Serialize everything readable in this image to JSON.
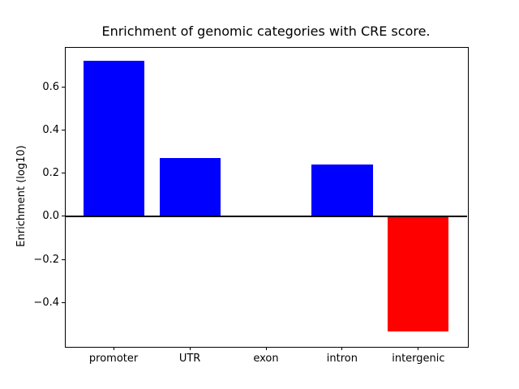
{
  "chart_data": {
    "type": "bar",
    "title": "Enrichment of genomic categories with CRE score.",
    "xlabel": "",
    "ylabel": "Enrichment (log10)",
    "categories": [
      "promoter",
      "UTR",
      "exon",
      "intron",
      "intergenic"
    ],
    "values": [
      0.72,
      0.27,
      0.0,
      0.24,
      -0.535
    ],
    "bar_colors": [
      "#0000ff",
      "#0000ff",
      "#0000ff",
      "#0000ff",
      "#ff0000"
    ],
    "positive_color": "#0000ff",
    "negative_color": "#ff0000",
    "bar_width": 0.8,
    "xlim": [
      -0.64,
      4.64
    ],
    "ylim": [
      -0.602,
      0.784
    ],
    "yticks": [
      0.6,
      0.4,
      0.2,
      0.0,
      -0.2,
      -0.4
    ],
    "ytick_labels": [
      "0.6",
      "0.4",
      "0.2",
      "0.0",
      "−0.2",
      "−0.4"
    ],
    "zero_line": true,
    "grid": false,
    "legend": null,
    "axis_color": "#000000",
    "background_color": "#ffffff"
  }
}
